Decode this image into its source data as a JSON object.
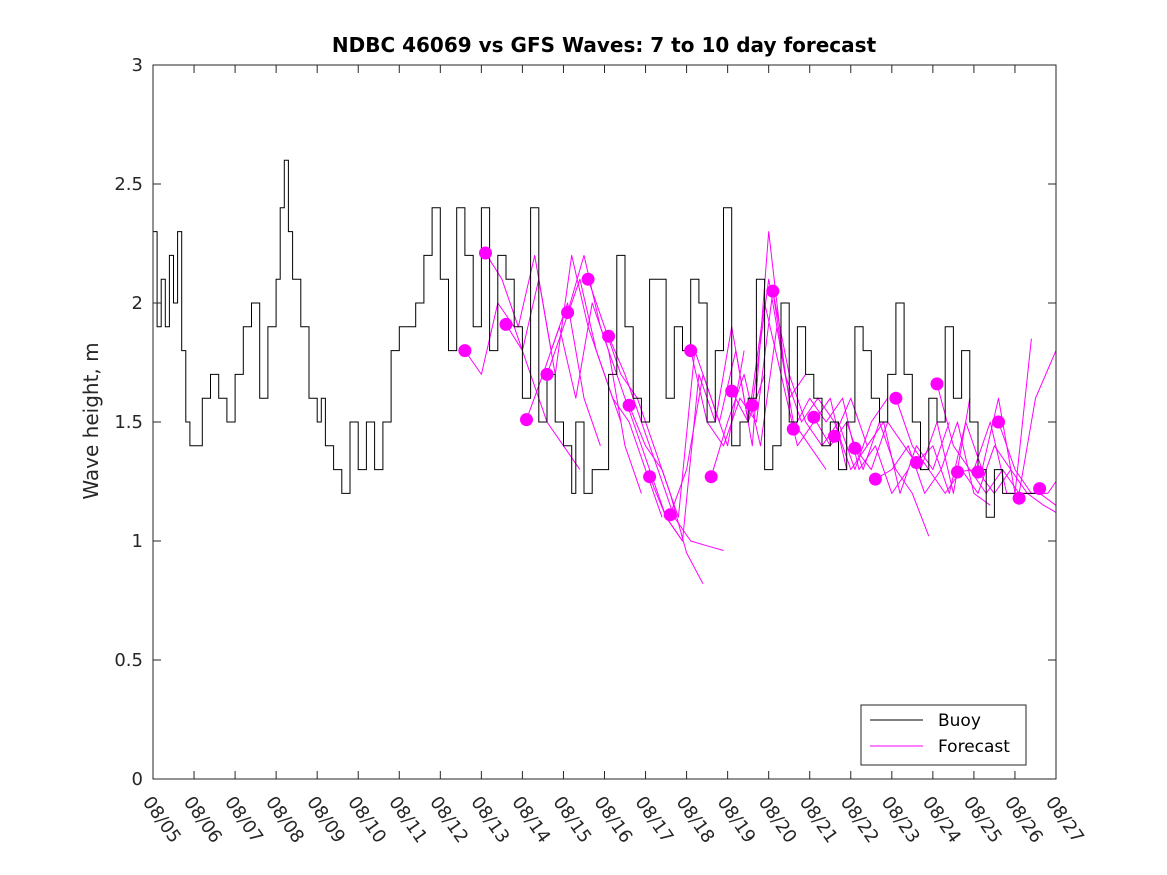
{
  "chart_data": {
    "type": "line",
    "title": "NDBC 46069 vs GFS Waves: 7 to 10 day forecast",
    "xlabel": "",
    "ylabel": "Wave height, m",
    "x_tick_labels": [
      "08/05",
      "08/06",
      "08/07",
      "08/08",
      "08/09",
      "08/10",
      "08/11",
      "08/12",
      "08/13",
      "08/14",
      "08/15",
      "08/16",
      "08/17",
      "08/18",
      "08/19",
      "08/20",
      "08/21",
      "08/22",
      "08/23",
      "08/24",
      "08/25",
      "08/26",
      "08/27"
    ],
    "y_tick_labels": [
      "0",
      "0.5",
      "1",
      "1.5",
      "2",
      "2.5",
      "3"
    ],
    "xlim_days": [
      0,
      22
    ],
    "ylim": [
      0,
      3
    ],
    "legend": {
      "position": "bottom-right",
      "entries": [
        "Buoy",
        "Forecast"
      ]
    },
    "colors": {
      "buoy": "#000000",
      "forecast": "#ff00ff"
    },
    "buoy": {
      "name": "Buoy",
      "x": [
        0,
        0.1,
        0.2,
        0.3,
        0.4,
        0.5,
        0.6,
        0.7,
        0.8,
        0.9,
        1.0,
        1.2,
        1.4,
        1.6,
        1.8,
        2.0,
        2.2,
        2.4,
        2.6,
        2.8,
        3.0,
        3.1,
        3.2,
        3.3,
        3.4,
        3.6,
        3.8,
        4.0,
        4.1,
        4.2,
        4.4,
        4.6,
        4.8,
        5.0,
        5.2,
        5.4,
        5.6,
        5.8,
        6.0,
        6.2,
        6.4,
        6.6,
        6.8,
        7.0,
        7.2,
        7.4,
        7.6,
        7.8,
        8.0,
        8.2,
        8.4,
        8.6,
        8.8,
        9.0,
        9.2,
        9.4,
        9.6,
        9.8,
        10.0,
        10.2,
        10.3,
        10.5,
        10.7,
        10.9,
        11.1,
        11.3,
        11.5,
        11.7,
        11.9,
        12.1,
        12.3,
        12.5,
        12.7,
        12.9,
        13.1,
        13.3,
        13.5,
        13.7,
        13.9,
        14.1,
        14.3,
        14.5,
        14.7,
        14.9,
        15.1,
        15.3,
        15.5,
        15.7,
        15.9,
        16.1,
        16.3,
        16.5,
        16.7,
        16.9,
        17.1,
        17.3,
        17.5,
        17.7,
        17.9,
        18.1,
        18.3,
        18.5,
        18.7,
        18.9,
        19.1,
        19.3,
        19.5,
        19.7,
        19.9,
        20.1,
        20.3,
        20.5,
        20.7,
        20.9,
        21.1,
        21.3,
        21.5
      ],
      "values": [
        2.3,
        1.9,
        2.1,
        1.9,
        2.2,
        2.0,
        2.3,
        1.8,
        1.5,
        1.4,
        1.4,
        1.6,
        1.7,
        1.6,
        1.5,
        1.7,
        1.9,
        2.0,
        1.6,
        1.9,
        2.1,
        2.4,
        2.6,
        2.3,
        2.1,
        1.9,
        1.6,
        1.5,
        1.6,
        1.4,
        1.3,
        1.2,
        1.5,
        1.3,
        1.5,
        1.3,
        1.5,
        1.8,
        1.9,
        1.9,
        2.0,
        2.2,
        2.4,
        2.1,
        1.8,
        2.4,
        2.2,
        1.9,
        2.4,
        1.8,
        2.2,
        2.1,
        1.9,
        1.6,
        2.4,
        1.5,
        1.7,
        1.5,
        1.4,
        1.2,
        1.5,
        1.2,
        1.3,
        1.3,
        1.7,
        2.2,
        1.9,
        1.6,
        1.5,
        2.1,
        2.1,
        1.6,
        1.9,
        1.8,
        2.1,
        2.0,
        1.5,
        1.8,
        2.4,
        1.4,
        1.5,
        1.6,
        2.1,
        1.3,
        1.4,
        2.0,
        1.5,
        1.9,
        1.7,
        1.6,
        1.4,
        1.5,
        1.3,
        1.5,
        1.9,
        1.8,
        1.6,
        1.5,
        1.7,
        2.0,
        1.7,
        1.5,
        1.3,
        1.6,
        1.5,
        1.9,
        1.6,
        1.8,
        1.5,
        1.3,
        1.1,
        1.3,
        1.2,
        1.2,
        1.2,
        1.2,
        1.2
      ]
    },
    "forecast_markers": {
      "name": "Forecast",
      "x": [
        7.6,
        8.1,
        8.6,
        9.1,
        9.6,
        10.1,
        10.6,
        11.1,
        11.6,
        12.1,
        12.6,
        13.1,
        13.6,
        14.1,
        14.6,
        15.1,
        15.6,
        16.1,
        16.6,
        17.1,
        17.6,
        18.1,
        18.6,
        19.1,
        19.6,
        20.1,
        20.6,
        21.1,
        21.6
      ],
      "values": [
        1.8,
        2.21,
        1.91,
        1.51,
        1.7,
        1.96,
        2.1,
        1.86,
        1.57,
        1.27,
        1.11,
        1.8,
        1.27,
        1.63,
        1.57,
        2.05,
        1.47,
        1.52,
        1.44,
        1.39,
        1.26,
        1.6,
        1.33,
        1.66,
        1.29,
        1.29,
        1.5,
        1.18,
        1.22
      ]
    },
    "forecast_runs": [
      {
        "x": [
          7.6,
          8.0,
          8.4,
          8.8,
          9.2,
          9.6,
          10.0,
          10.4
        ],
        "values": [
          1.8,
          1.7,
          2.0,
          1.9,
          1.7,
          1.5,
          1.4,
          1.3
        ]
      },
      {
        "x": [
          8.1,
          8.5,
          8.9,
          9.3,
          9.7,
          10.1,
          10.5,
          10.9
        ],
        "values": [
          2.21,
          2.1,
          1.9,
          2.2,
          1.8,
          2.0,
          1.6,
          1.4
        ]
      },
      {
        "x": [
          8.6,
          9.0,
          9.4,
          9.8,
          10.2,
          10.6,
          11.0,
          11.4
        ],
        "values": [
          1.91,
          1.8,
          2.1,
          1.7,
          2.2,
          1.9,
          1.7,
          1.5
        ]
      },
      {
        "x": [
          9.1,
          9.5,
          9.9,
          10.3,
          10.7,
          11.1,
          11.5,
          11.9
        ],
        "values": [
          1.51,
          1.7,
          1.9,
          1.6,
          2.0,
          1.8,
          1.4,
          1.2
        ]
      },
      {
        "x": [
          9.6,
          10.0,
          10.4,
          10.8,
          11.2,
          11.6,
          12.0,
          12.4
        ],
        "values": [
          1.7,
          1.9,
          2.1,
          1.8,
          1.6,
          1.5,
          1.3,
          1.1
        ]
      },
      {
        "x": [
          10.1,
          10.5,
          10.9,
          11.3,
          11.7,
          12.1,
          12.5,
          12.9
        ],
        "values": [
          1.96,
          2.2,
          1.9,
          1.7,
          1.5,
          1.3,
          1.1,
          1.0
        ]
      },
      {
        "x": [
          10.6,
          11.0,
          11.4,
          11.8,
          12.2,
          12.6,
          13.0,
          13.4
        ],
        "values": [
          2.1,
          1.9,
          1.7,
          1.6,
          1.4,
          1.2,
          0.95,
          0.82
        ]
      },
      {
        "x": [
          11.1,
          11.5,
          11.9,
          12.3,
          12.7,
          13.1,
          13.5,
          13.9
        ],
        "values": [
          1.86,
          1.7,
          1.5,
          1.3,
          1.1,
          1.0,
          0.98,
          0.96
        ]
      },
      {
        "x": [
          11.6,
          12.0,
          12.4,
          12.8,
          13.2,
          13.6,
          14.0,
          14.4
        ],
        "values": [
          1.57,
          1.4,
          1.3,
          1.1,
          1.8,
          1.6,
          1.4,
          1.8
        ]
      },
      {
        "x": [
          12.1,
          12.5,
          12.9,
          13.3,
          13.7,
          14.1,
          14.5,
          14.9
        ],
        "values": [
          1.27,
          1.1,
          1.0,
          1.7,
          1.5,
          1.9,
          1.5,
          1.7
        ]
      },
      {
        "x": [
          12.6,
          13.0,
          13.4,
          13.8,
          14.2,
          14.6,
          15.0,
          15.4
        ],
        "values": [
          1.11,
          1.3,
          1.7,
          1.5,
          1.8,
          1.4,
          2.3,
          1.7
        ]
      },
      {
        "x": [
          13.1,
          13.5,
          13.9,
          14.3,
          14.7,
          15.1,
          15.5,
          15.9
        ],
        "values": [
          1.8,
          1.5,
          1.4,
          1.6,
          1.5,
          2.05,
          1.6,
          1.7
        ]
      },
      {
        "x": [
          13.6,
          14.0,
          14.4,
          14.8,
          15.2,
          15.6,
          16.0,
          16.4
        ],
        "values": [
          1.27,
          1.5,
          1.7,
          1.4,
          1.9,
          1.5,
          1.4,
          1.3
        ]
      },
      {
        "x": [
          14.1,
          14.5,
          14.9,
          15.3,
          15.7,
          16.1,
          16.5,
          16.9
        ],
        "values": [
          1.63,
          1.5,
          2.0,
          1.7,
          1.4,
          1.5,
          1.6,
          1.3
        ]
      },
      {
        "x": [
          14.6,
          15.0,
          15.4,
          15.8,
          16.2,
          16.6,
          17.0,
          17.4
        ],
        "values": [
          1.57,
          2.1,
          1.7,
          1.5,
          1.6,
          1.5,
          1.3,
          1.4
        ]
      },
      {
        "x": [
          15.1,
          15.5,
          15.9,
          16.3,
          16.7,
          17.1,
          17.5,
          17.9
        ],
        "values": [
          2.05,
          1.7,
          1.5,
          1.4,
          1.5,
          1.3,
          1.5,
          1.6
        ]
      },
      {
        "x": [
          15.6,
          16.0,
          16.4,
          16.8,
          17.2,
          17.6,
          18.0,
          18.4
        ],
        "values": [
          1.47,
          1.6,
          1.5,
          1.6,
          1.3,
          1.4,
          1.2,
          1.3
        ]
      },
      {
        "x": [
          16.1,
          16.5,
          16.9,
          17.3,
          17.7,
          18.1,
          18.5,
          18.9
        ],
        "values": [
          1.52,
          1.4,
          1.5,
          1.3,
          1.5,
          1.3,
          1.2,
          1.02
        ]
      },
      {
        "x": [
          16.6,
          17.0,
          17.4,
          17.8,
          18.2,
          18.6,
          19.0,
          19.4
        ],
        "values": [
          1.44,
          1.6,
          1.4,
          1.5,
          1.2,
          1.4,
          1.3,
          1.5
        ]
      },
      {
        "x": [
          17.1,
          17.5,
          17.9,
          18.3,
          18.7,
          19.1,
          19.5,
          19.9
        ],
        "values": [
          1.39,
          1.3,
          1.5,
          1.4,
          1.3,
          1.5,
          1.2,
          1.6
        ]
      },
      {
        "x": [
          17.6,
          18.0,
          18.4,
          18.8,
          19.2,
          19.6,
          20.0,
          20.4
        ],
        "values": [
          1.26,
          1.3,
          1.4,
          1.2,
          1.3,
          1.5,
          1.2,
          1.15
        ]
      },
      {
        "x": [
          18.1,
          18.5,
          18.9,
          19.3,
          19.7,
          20.1,
          20.5,
          20.9
        ],
        "values": [
          1.6,
          1.4,
          1.3,
          1.2,
          1.3,
          1.2,
          1.4,
          1.3
        ]
      },
      {
        "x": [
          18.6,
          19.0,
          19.4,
          19.8,
          20.2,
          20.6,
          21.0,
          21.4
        ],
        "values": [
          1.33,
          1.4,
          1.2,
          1.5,
          1.3,
          1.6,
          1.2,
          1.85
        ]
      },
      {
        "x": [
          19.1,
          19.5,
          19.9,
          20.3,
          20.7,
          21.1,
          21.5,
          22.0
        ],
        "values": [
          1.66,
          1.4,
          1.3,
          1.2,
          1.3,
          1.2,
          1.6,
          1.8
        ]
      },
      {
        "x": [
          19.6,
          20.0,
          20.4,
          20.8,
          21.2,
          21.6,
          22.0
        ],
        "values": [
          1.29,
          1.3,
          1.5,
          1.2,
          1.2,
          1.2,
          1.15
        ]
      },
      {
        "x": [
          20.1,
          20.5,
          20.9,
          21.3,
          21.7,
          22.0
        ],
        "values": [
          1.29,
          1.2,
          1.3,
          1.2,
          1.15,
          1.12
        ]
      },
      {
        "x": [
          20.6,
          21.0,
          21.4,
          21.8,
          22.0
        ],
        "values": [
          1.5,
          1.3,
          1.2,
          1.2,
          1.25
        ]
      }
    ]
  }
}
